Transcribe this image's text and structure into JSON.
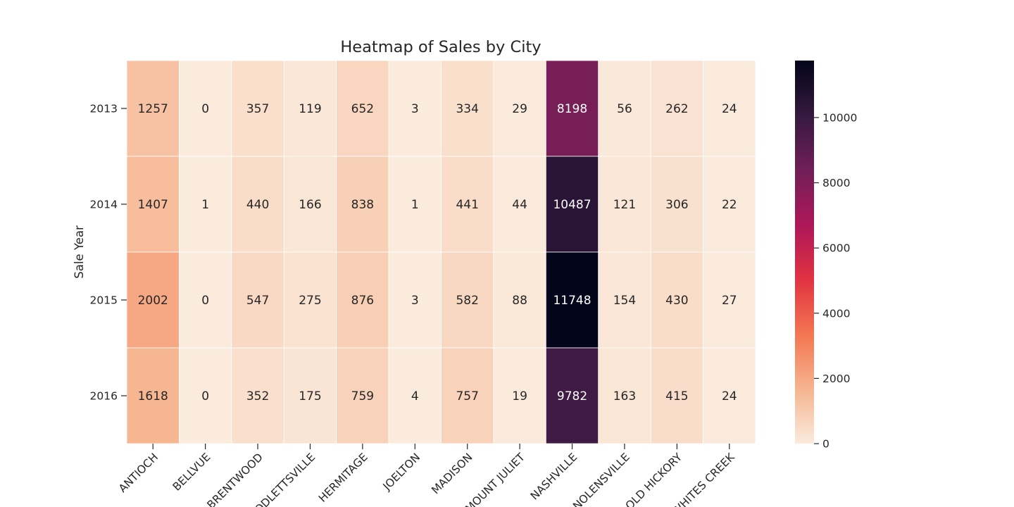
{
  "chart_data": {
    "type": "heatmap",
    "title": "Heatmap of Sales by City",
    "xlabel": "",
    "ylabel": "Sale Year",
    "x_categories": [
      "ANTIOCH",
      "BELLVUE",
      "BRENTWOOD",
      "GOODLETTSVILLE",
      "HERMITAGE",
      "JOELTON",
      "MADISON",
      "MOUNT JULIET",
      "NASHVILLE",
      "NOLENSVILLE",
      "OLD HICKORY",
      "WHITES CREEK"
    ],
    "y_categories": [
      "2013",
      "2014",
      "2015",
      "2016"
    ],
    "values": [
      [
        1257,
        0,
        357,
        119,
        652,
        3,
        334,
        29,
        8198,
        56,
        262,
        24
      ],
      [
        1407,
        1,
        440,
        166,
        838,
        1,
        441,
        44,
        10487,
        121,
        306,
        22
      ],
      [
        2002,
        0,
        547,
        275,
        876,
        3,
        582,
        88,
        11748,
        154,
        430,
        27
      ],
      [
        1618,
        0,
        352,
        175,
        759,
        4,
        757,
        19,
        9782,
        163,
        415,
        24
      ]
    ],
    "colorbar": {
      "range": [
        0,
        11748
      ],
      "ticks": [
        0,
        2000,
        4000,
        6000,
        8000,
        10000
      ],
      "colormap": "rocket_r",
      "stops": [
        "#faebdd",
        "#f6b48f",
        "#f37651",
        "#e13342",
        "#ad1759",
        "#701f57",
        "#35193e",
        "#03051a"
      ]
    },
    "annotation_dark_text_color": "#262626",
    "annotation_light_text_color": "#ffffff",
    "cell_border_color": "#ffffff"
  }
}
